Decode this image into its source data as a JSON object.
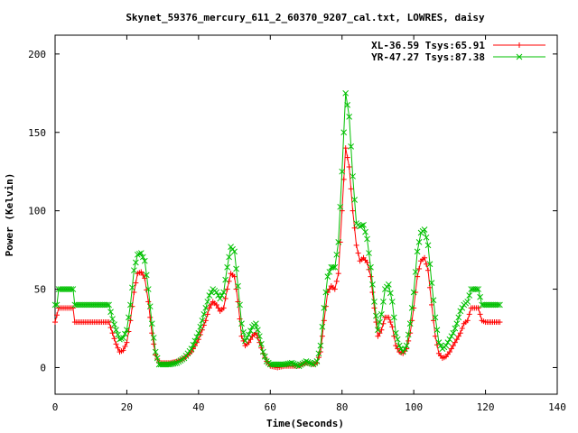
{
  "chart_data": {
    "type": "line",
    "title": "Skynet_59376_mercury_611_2_60370_9207_cal.txt, LOWRES, daisy",
    "xlabel": "Time(Seconds)",
    "ylabel": "Power (Kelvin)",
    "xlim": [
      0,
      140
    ],
    "ylim": [
      -17,
      212
    ],
    "xticks": [
      0,
      20,
      40,
      60,
      80,
      100,
      120,
      140
    ],
    "yticks": [
      0,
      50,
      100,
      150,
      200
    ],
    "legend_position": "top-right",
    "grid": false,
    "series": [
      {
        "name": "XL-36.59 Tsys:65.91",
        "color": "#ff0000",
        "marker": "plus",
        "points": [
          [
            0,
            29
          ],
          [
            1,
            38
          ],
          [
            3,
            38
          ],
          [
            5,
            38
          ],
          [
            5.5,
            29
          ],
          [
            7,
            29
          ],
          [
            10,
            29
          ],
          [
            13,
            29
          ],
          [
            15,
            29
          ],
          [
            16,
            22
          ],
          [
            17,
            15
          ],
          [
            18,
            10
          ],
          [
            19,
            11
          ],
          [
            20,
            16
          ],
          [
            21,
            30
          ],
          [
            22,
            48
          ],
          [
            23,
            60
          ],
          [
            24,
            61
          ],
          [
            25,
            57
          ],
          [
            26,
            42
          ],
          [
            27,
            22
          ],
          [
            28,
            8
          ],
          [
            29,
            3
          ],
          [
            30,
            3
          ],
          [
            32,
            3
          ],
          [
            34,
            4
          ],
          [
            36,
            6
          ],
          [
            38,
            10
          ],
          [
            40,
            18
          ],
          [
            42,
            30
          ],
          [
            43,
            38
          ],
          [
            44,
            42
          ],
          [
            45,
            40
          ],
          [
            46,
            36
          ],
          [
            47,
            38
          ],
          [
            48,
            50
          ],
          [
            49,
            60
          ],
          [
            50,
            58
          ],
          [
            51,
            42
          ],
          [
            52,
            20
          ],
          [
            53,
            14
          ],
          [
            54,
            16
          ],
          [
            55,
            20
          ],
          [
            56,
            22
          ],
          [
            57,
            16
          ],
          [
            58,
            9
          ],
          [
            59,
            4
          ],
          [
            60,
            1
          ],
          [
            62,
            0
          ],
          [
            64,
            1
          ],
          [
            66,
            1
          ],
          [
            68,
            1
          ],
          [
            70,
            3
          ],
          [
            72,
            2
          ],
          [
            73,
            3
          ],
          [
            74,
            10
          ],
          [
            75,
            30
          ],
          [
            76,
            48
          ],
          [
            77,
            52
          ],
          [
            78,
            50
          ],
          [
            79,
            60
          ],
          [
            80,
            100
          ],
          [
            81,
            140
          ],
          [
            82,
            128
          ],
          [
            83,
            100
          ],
          [
            84,
            78
          ],
          [
            85,
            68
          ],
          [
            86,
            70
          ],
          [
            87,
            67
          ],
          [
            88,
            58
          ],
          [
            89,
            38
          ],
          [
            90,
            20
          ],
          [
            91,
            24
          ],
          [
            92,
            32
          ],
          [
            93,
            32
          ],
          [
            94,
            26
          ],
          [
            95,
            14
          ],
          [
            96,
            10
          ],
          [
            97,
            9
          ],
          [
            98,
            12
          ],
          [
            99,
            22
          ],
          [
            100,
            38
          ],
          [
            101,
            58
          ],
          [
            102,
            68
          ],
          [
            103,
            70
          ],
          [
            104,
            62
          ],
          [
            105,
            40
          ],
          [
            106,
            20
          ],
          [
            107,
            9
          ],
          [
            108,
            6
          ],
          [
            109,
            7
          ],
          [
            110,
            10
          ],
          [
            111,
            14
          ],
          [
            112,
            18
          ],
          [
            113,
            22
          ],
          [
            114,
            28
          ],
          [
            115,
            30
          ],
          [
            116,
            38
          ],
          [
            118,
            38
          ],
          [
            119,
            30
          ],
          [
            120,
            29
          ],
          [
            122,
            29
          ],
          [
            124,
            29
          ]
        ]
      },
      {
        "name": "YR-47.27 Tsys:87.38",
        "color": "#00c000",
        "marker": "cross",
        "points": [
          [
            0,
            40
          ],
          [
            0.5,
            40
          ],
          [
            1,
            50
          ],
          [
            3,
            50
          ],
          [
            5,
            50
          ],
          [
            5.5,
            40
          ],
          [
            7,
            40
          ],
          [
            10,
            40
          ],
          [
            13,
            40
          ],
          [
            15,
            40
          ],
          [
            16,
            31
          ],
          [
            17,
            24
          ],
          [
            18,
            18
          ],
          [
            19,
            19
          ],
          [
            20,
            24
          ],
          [
            21,
            40
          ],
          [
            22,
            62
          ],
          [
            23,
            72
          ],
          [
            24,
            73
          ],
          [
            25,
            68
          ],
          [
            26,
            50
          ],
          [
            27,
            28
          ],
          [
            28,
            10
          ],
          [
            29,
            2
          ],
          [
            30,
            2
          ],
          [
            32,
            2
          ],
          [
            34,
            3
          ],
          [
            36,
            6
          ],
          [
            38,
            12
          ],
          [
            40,
            22
          ],
          [
            42,
            38
          ],
          [
            43,
            46
          ],
          [
            44,
            50
          ],
          [
            45,
            48
          ],
          [
            46,
            44
          ],
          [
            47,
            48
          ],
          [
            48,
            64
          ],
          [
            49,
            77
          ],
          [
            50,
            74
          ],
          [
            51,
            52
          ],
          [
            52,
            28
          ],
          [
            53,
            17
          ],
          [
            54,
            21
          ],
          [
            55,
            26
          ],
          [
            56,
            28
          ],
          [
            57,
            20
          ],
          [
            58,
            10
          ],
          [
            59,
            4
          ],
          [
            60,
            2
          ],
          [
            62,
            2
          ],
          [
            64,
            2
          ],
          [
            66,
            3
          ],
          [
            68,
            1
          ],
          [
            70,
            4
          ],
          [
            72,
            2
          ],
          [
            73,
            4
          ],
          [
            74,
            14
          ],
          [
            75,
            38
          ],
          [
            76,
            58
          ],
          [
            77,
            64
          ],
          [
            78,
            64
          ],
          [
            79,
            80
          ],
          [
            80,
            125
          ],
          [
            81,
            175
          ],
          [
            82,
            160
          ],
          [
            83,
            122
          ],
          [
            84,
            92
          ],
          [
            85,
            90
          ],
          [
            86,
            91
          ],
          [
            87,
            82
          ],
          [
            88,
            64
          ],
          [
            89,
            42
          ],
          [
            90,
            24
          ],
          [
            91,
            34
          ],
          [
            92,
            50
          ],
          [
            93,
            53
          ],
          [
            94,
            42
          ],
          [
            95,
            22
          ],
          [
            96,
            14
          ],
          [
            97,
            10
          ],
          [
            98,
            14
          ],
          [
            99,
            28
          ],
          [
            100,
            48
          ],
          [
            101,
            74
          ],
          [
            102,
            86
          ],
          [
            103,
            88
          ],
          [
            104,
            78
          ],
          [
            105,
            54
          ],
          [
            106,
            32
          ],
          [
            107,
            16
          ],
          [
            108,
            12
          ],
          [
            109,
            14
          ],
          [
            110,
            18
          ],
          [
            111,
            22
          ],
          [
            112,
            28
          ],
          [
            113,
            36
          ],
          [
            114,
            40
          ],
          [
            115,
            42
          ],
          [
            116,
            50
          ],
          [
            118,
            50
          ],
          [
            119,
            40
          ],
          [
            120,
            40
          ],
          [
            122,
            40
          ],
          [
            124,
            40
          ]
        ]
      }
    ]
  }
}
